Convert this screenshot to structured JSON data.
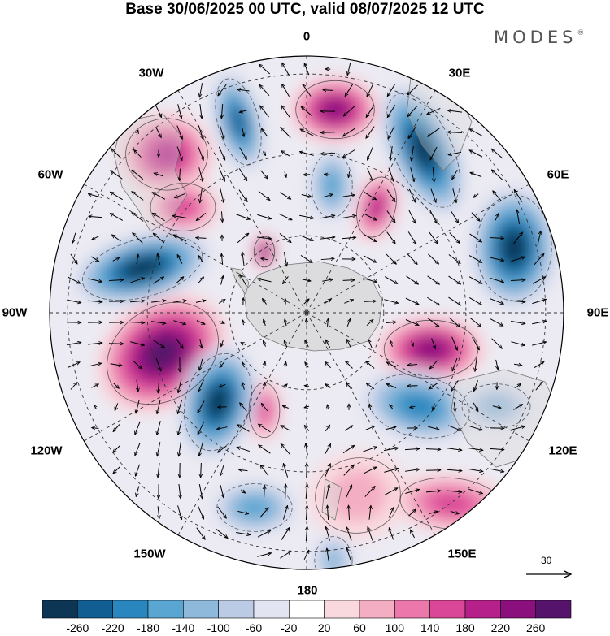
{
  "title": "Base 30/06/2025 00 UTC, valid 08/07/2025 12 UTC",
  "logo": {
    "text": "MODES",
    "mark": "®"
  },
  "longitude_labels": {
    "top": "0",
    "top_right": "30E",
    "right_upper": "60E",
    "right": "90E",
    "right_lower": "120E",
    "bottom_right": "150E",
    "bottom": "180",
    "bottom_left": "150W",
    "left_lower": "120W",
    "left": "90W",
    "left_upper": "60W",
    "top_left": "30W"
  },
  "reference_vector": {
    "label": "30"
  },
  "colorbar": {
    "ticks": [
      "-260",
      "-220",
      "-180",
      "-140",
      "-100",
      "-60",
      "-20",
      "20",
      "60",
      "100",
      "140",
      "180",
      "220",
      "260"
    ],
    "colors": [
      "#0d3655",
      "#115f92",
      "#2a86bf",
      "#5aa6d2",
      "#8fb9db",
      "#bccbe5",
      "#e3e4f1",
      "#ffffff",
      "#f9d9de",
      "#f4aec4",
      "#ec78ab",
      "#db4798",
      "#b6208a",
      "#8c0f7e",
      "#55136b"
    ]
  },
  "anomaly_centers": [
    {
      "sign": "negative",
      "value": -200
    },
    {
      "sign": "positive",
      "value": 190
    },
    {
      "sign": "negative",
      "value": -230
    },
    {
      "sign": "negative",
      "value": -120
    },
    {
      "sign": "positive",
      "value": 160
    },
    {
      "sign": "positive",
      "value": 170
    },
    {
      "sign": "positive",
      "value": 120
    },
    {
      "sign": "positive",
      "value": 230
    },
    {
      "sign": "negative",
      "value": -250
    },
    {
      "sign": "positive",
      "value": 240
    },
    {
      "sign": "negative",
      "value": -240
    },
    {
      "sign": "positive",
      "value": 200
    },
    {
      "sign": "negative",
      "value": -170
    },
    {
      "sign": "positive",
      "value": 120
    },
    {
      "sign": "negative",
      "value": -230
    },
    {
      "sign": "positive",
      "value": 60
    },
    {
      "sign": "negative",
      "value": -140
    },
    {
      "sign": "positive",
      "value": 140
    },
    {
      "sign": "negative",
      "value": -80
    },
    {
      "sign": "negative",
      "value": -100
    }
  ]
}
